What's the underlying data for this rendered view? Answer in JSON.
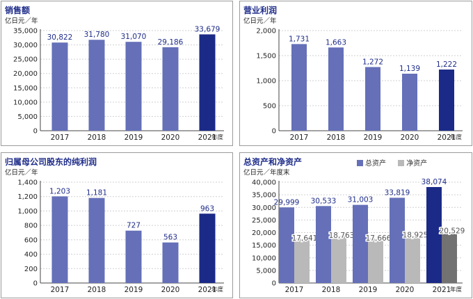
{
  "colors": {
    "bar": "#6570b8",
    "bar_highlight": "#1b2a87",
    "bar_net": "#b9b9b9",
    "bar_net_highlight": "#727272",
    "title": "#1f2d8a",
    "value_label": "#1f2d8a",
    "grid": "#cfcfcf"
  },
  "chart_data": [
    {
      "type": "bar",
      "title": "销售额",
      "unit": "亿日元／年",
      "xunit": "年度",
      "categories": [
        "2017",
        "2018",
        "2019",
        "2020",
        "2021"
      ],
      "values": [
        30822,
        31780,
        31070,
        29186,
        33679
      ],
      "value_labels": [
        "30,822",
        "31,780",
        "31,070",
        "29,186",
        "33,679"
      ],
      "yticks": [
        "0",
        "5,000",
        "10,000",
        "15,000",
        "20,000",
        "25,000",
        "30,000",
        "35,000"
      ],
      "ylim": [
        0,
        35000
      ],
      "highlight_index": 4,
      "grid": true
    },
    {
      "type": "bar",
      "title": "营业利润",
      "unit": "亿日元／年",
      "xunit": "年度",
      "categories": [
        "2017",
        "2018",
        "2019",
        "2020",
        "2021"
      ],
      "values": [
        1731,
        1663,
        1272,
        1139,
        1222
      ],
      "value_labels": [
        "1,731",
        "1,663",
        "1,272",
        "1,139",
        "1,222"
      ],
      "yticks": [
        "0",
        "500",
        "1,000",
        "1,500",
        "2,000"
      ],
      "ylim": [
        0,
        2000
      ],
      "highlight_index": 4,
      "grid": true
    },
    {
      "type": "bar",
      "title": "归属母公司股东的纯利润",
      "unit": "亿日元／年",
      "xunit": "年度",
      "categories": [
        "2017",
        "2018",
        "2019",
        "2020",
        "2021"
      ],
      "values": [
        1203,
        1181,
        727,
        563,
        963
      ],
      "value_labels": [
        "1,203",
        "1,181",
        "727",
        "563",
        "963"
      ],
      "yticks": [
        "0",
        "200",
        "400",
        "600",
        "800",
        "1,000",
        "1,200",
        "1,400"
      ],
      "ylim": [
        0,
        1400
      ],
      "highlight_index": 4,
      "grid": true
    },
    {
      "type": "bar",
      "title": "总资产和净资产",
      "unit": "亿日元／年度末",
      "xunit": "年度",
      "categories": [
        "2017",
        "2018",
        "2019",
        "2020",
        "2021"
      ],
      "series": [
        {
          "name": "总资产",
          "values": [
            29999,
            30533,
            31003,
            33819,
            38074
          ],
          "value_labels": [
            "29,999",
            "30,533",
            "31,003",
            "33,819",
            "38,074"
          ]
        },
        {
          "name": "净资产",
          "values": [
            17641,
            18763,
            17666,
            18925,
            20529
          ],
          "value_labels": [
            "17,641",
            "18,763",
            "17,666",
            "18,925",
            "20,529"
          ]
        }
      ],
      "yticks": [
        "0",
        "5,000",
        "10,000",
        "15,000",
        "20,000",
        "25,000",
        "30,000",
        "35,000",
        "40,000"
      ],
      "ylim": [
        0,
        40000
      ],
      "highlight_index": 4,
      "legend_position": "top",
      "grid": true
    }
  ]
}
